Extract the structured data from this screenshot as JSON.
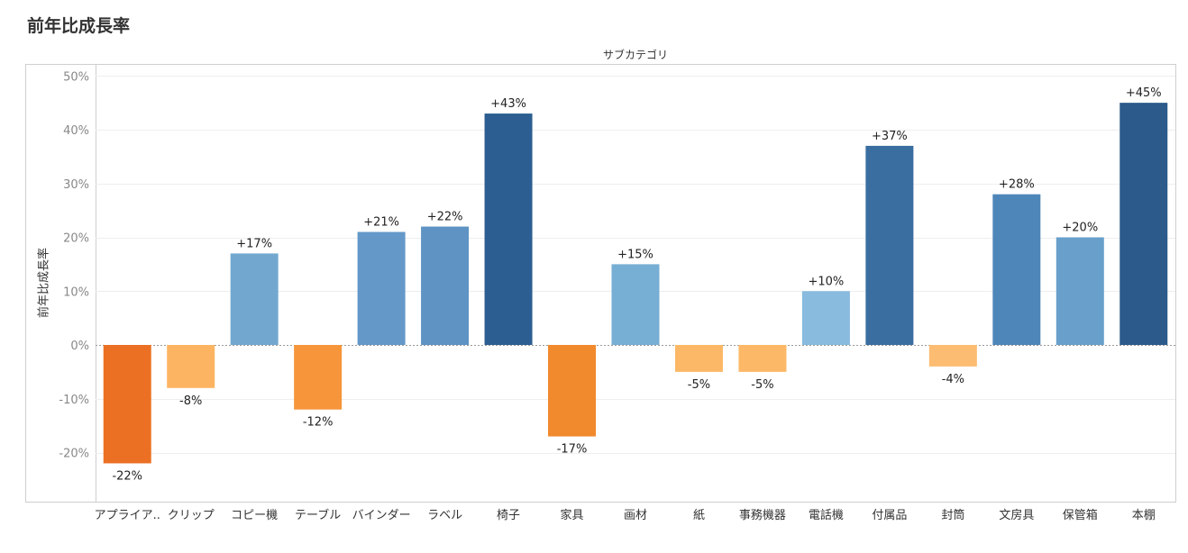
{
  "title": "前年比成長率",
  "chart_data": {
    "type": "bar",
    "title": "前年比成長率",
    "xlabel": "サブカテゴリ",
    "ylabel": "前年比成長率",
    "ylim": [
      -29,
      50
    ],
    "yticks": [
      "50%",
      "40%",
      "30%",
      "20%",
      "10%",
      "0%",
      "-10%",
      "-20%"
    ],
    "ytick_values": [
      50,
      40,
      30,
      20,
      10,
      0,
      -10,
      -20
    ],
    "grid": true,
    "categories": [
      "アプライア..",
      "クリップ",
      "コピー機",
      "テーブル",
      "バインダー",
      "ラベル",
      "椅子",
      "家具",
      "画材",
      "紙",
      "事務機器",
      "電話機",
      "付属品",
      "封筒",
      "文房具",
      "保管箱",
      "本棚"
    ],
    "values": [
      -22,
      -8,
      17,
      -12,
      21,
      22,
      43,
      -17,
      15,
      -5,
      -5,
      10,
      37,
      -4,
      28,
      20,
      45
    ],
    "data_labels": [
      "-22%",
      "-8%",
      "+17%",
      "-12%",
      "+21%",
      "+22%",
      "+43%",
      "-17%",
      "+15%",
      "-5%",
      "-5%",
      "+10%",
      "+37%",
      "-4%",
      "+28%",
      "+20%",
      "+45%"
    ],
    "colors": [
      "#eb7024",
      "#fdb462",
      "#72a8d0",
      "#f6953a",
      "#6498c8",
      "#5e93c3",
      "#2c5e91",
      "#f1892d",
      "#77aed4",
      "#fcb866",
      "#fcb866",
      "#88bbdd",
      "#3a6ea0",
      "#fcbc72",
      "#4f86b9",
      "#68a0cb",
      "#2b5a8b"
    ]
  }
}
